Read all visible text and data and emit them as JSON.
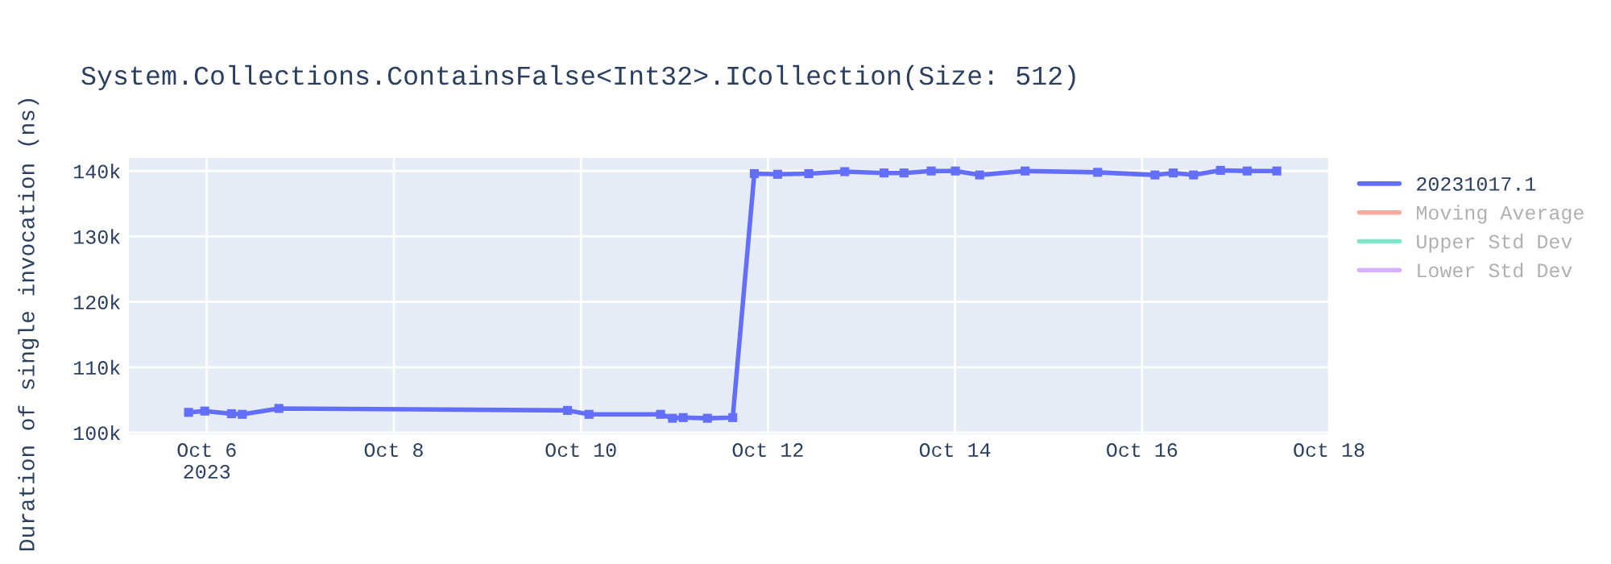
{
  "chart_data": {
    "type": "line",
    "title": "System.Collections.ContainsFalse<Int32>.ICollection(Size: 512)",
    "ylabel": "Duration of single invocation (ns)",
    "x": [
      "2023-10-05T19:19",
      "2023-10-05T23:28",
      "2023-10-06T06:20",
      "2023-10-06T09:06",
      "2023-10-06T18:30",
      "2023-10-09T20:34",
      "2023-10-10T02:05",
      "2023-10-10T20:27",
      "2023-10-10T23:30",
      "2023-10-11T02:15",
      "2023-10-11T08:28",
      "2023-10-11T14:58",
      "2023-10-11T20:30",
      "2023-10-12T02:29",
      "2023-10-12T10:29",
      "2023-10-12T19:43",
      "2023-10-13T05:48",
      "2023-10-13T10:55",
      "2023-10-13T17:54",
      "2023-10-14T00:06",
      "2023-10-14T06:19",
      "2023-10-14T18:00",
      "2023-10-15T12:37",
      "2023-10-16T03:19",
      "2023-10-16T08:00",
      "2023-10-16T13:14",
      "2023-10-16T20:08",
      "2023-10-17T03:00",
      "2023-10-17T10:35"
    ],
    "series": [
      {
        "name": "20231017.1",
        "color": "#636efa",
        "values": [
          103100,
          103300,
          102900,
          102800,
          103700,
          103400,
          102800,
          102800,
          102200,
          102300,
          102200,
          102300,
          139600,
          139500,
          139600,
          139900,
          139700,
          139700,
          140000,
          140000,
          139400,
          140000,
          139800,
          139400,
          139700,
          139400,
          140100,
          140000,
          140000
        ]
      },
      {
        "name": "Moving Average",
        "color": "#ef553b",
        "values": [
          null,
          null,
          null,
          null,
          null,
          null,
          null,
          null,
          null,
          null,
          null,
          null,
          null,
          null,
          null,
          null,
          null,
          null,
          null,
          null,
          null,
          null,
          null,
          null,
          null,
          null,
          null,
          null,
          null
        ]
      },
      {
        "name": "Upper Std Dev",
        "color": "#00cc96",
        "values": [
          null,
          null,
          null,
          null,
          null,
          null,
          null,
          null,
          null,
          null,
          null,
          null,
          null,
          null,
          null,
          null,
          null,
          null,
          null,
          null,
          null,
          null,
          null,
          null,
          null,
          null,
          null,
          null,
          null
        ]
      },
      {
        "name": "Lower Std Dev",
        "color": "#ab63fa",
        "values": [
          null,
          null,
          null,
          null,
          null,
          null,
          null,
          null,
          null,
          null,
          null,
          null,
          null,
          null,
          null,
          null,
          null,
          null,
          null,
          null,
          null,
          null,
          null,
          null,
          null,
          null,
          null,
          null,
          null
        ]
      }
    ],
    "xlim": [
      "2023-10-05T04:00",
      "2023-10-18T00:00"
    ],
    "xticks": [
      {
        "value": "2023-10-06",
        "label": "Oct 6\n2023"
      },
      {
        "value": "2023-10-08",
        "label": "Oct 8"
      },
      {
        "value": "2023-10-10",
        "label": "Oct 10"
      },
      {
        "value": "2023-10-12",
        "label": "Oct 12"
      },
      {
        "value": "2023-10-14",
        "label": "Oct 14"
      },
      {
        "value": "2023-10-16",
        "label": "Oct 16"
      },
      {
        "value": "2023-10-18",
        "label": "Oct 18"
      }
    ],
    "ylim": [
      99750,
      142000
    ],
    "yticks": [
      {
        "value": 100000,
        "label": "100k"
      },
      {
        "value": 110000,
        "label": "110k"
      },
      {
        "value": 120000,
        "label": "120k"
      },
      {
        "value": 130000,
        "label": "130k"
      },
      {
        "value": 140000,
        "label": "140k"
      }
    ],
    "grid": true,
    "legend": "top right",
    "marker": "square",
    "line_style": "solid"
  }
}
